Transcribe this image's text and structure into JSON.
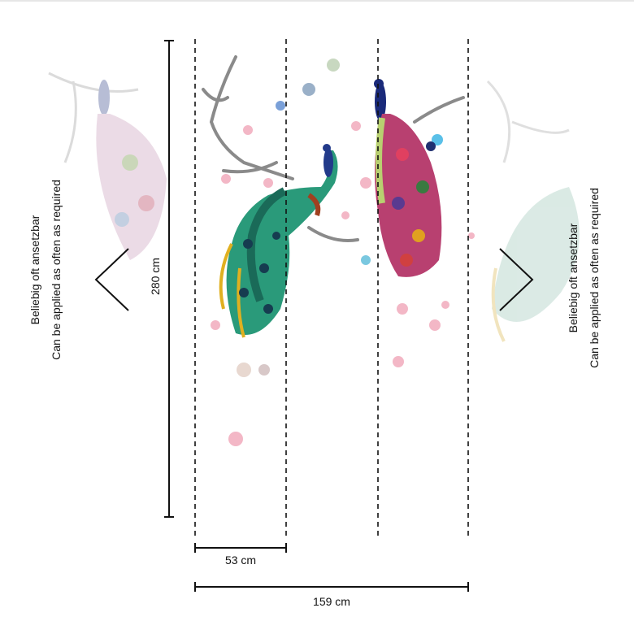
{
  "dimensions": {
    "height": "280 cm",
    "panel_width": "53 cm",
    "total_width": "159 cm"
  },
  "left_note": {
    "de": "Beliebig oft ansetzbar",
    "en": "Can be applied as often as required"
  },
  "right_note": {
    "de": "Beliebig oft ansetzbar",
    "en": "Can be applied as often as required"
  }
}
